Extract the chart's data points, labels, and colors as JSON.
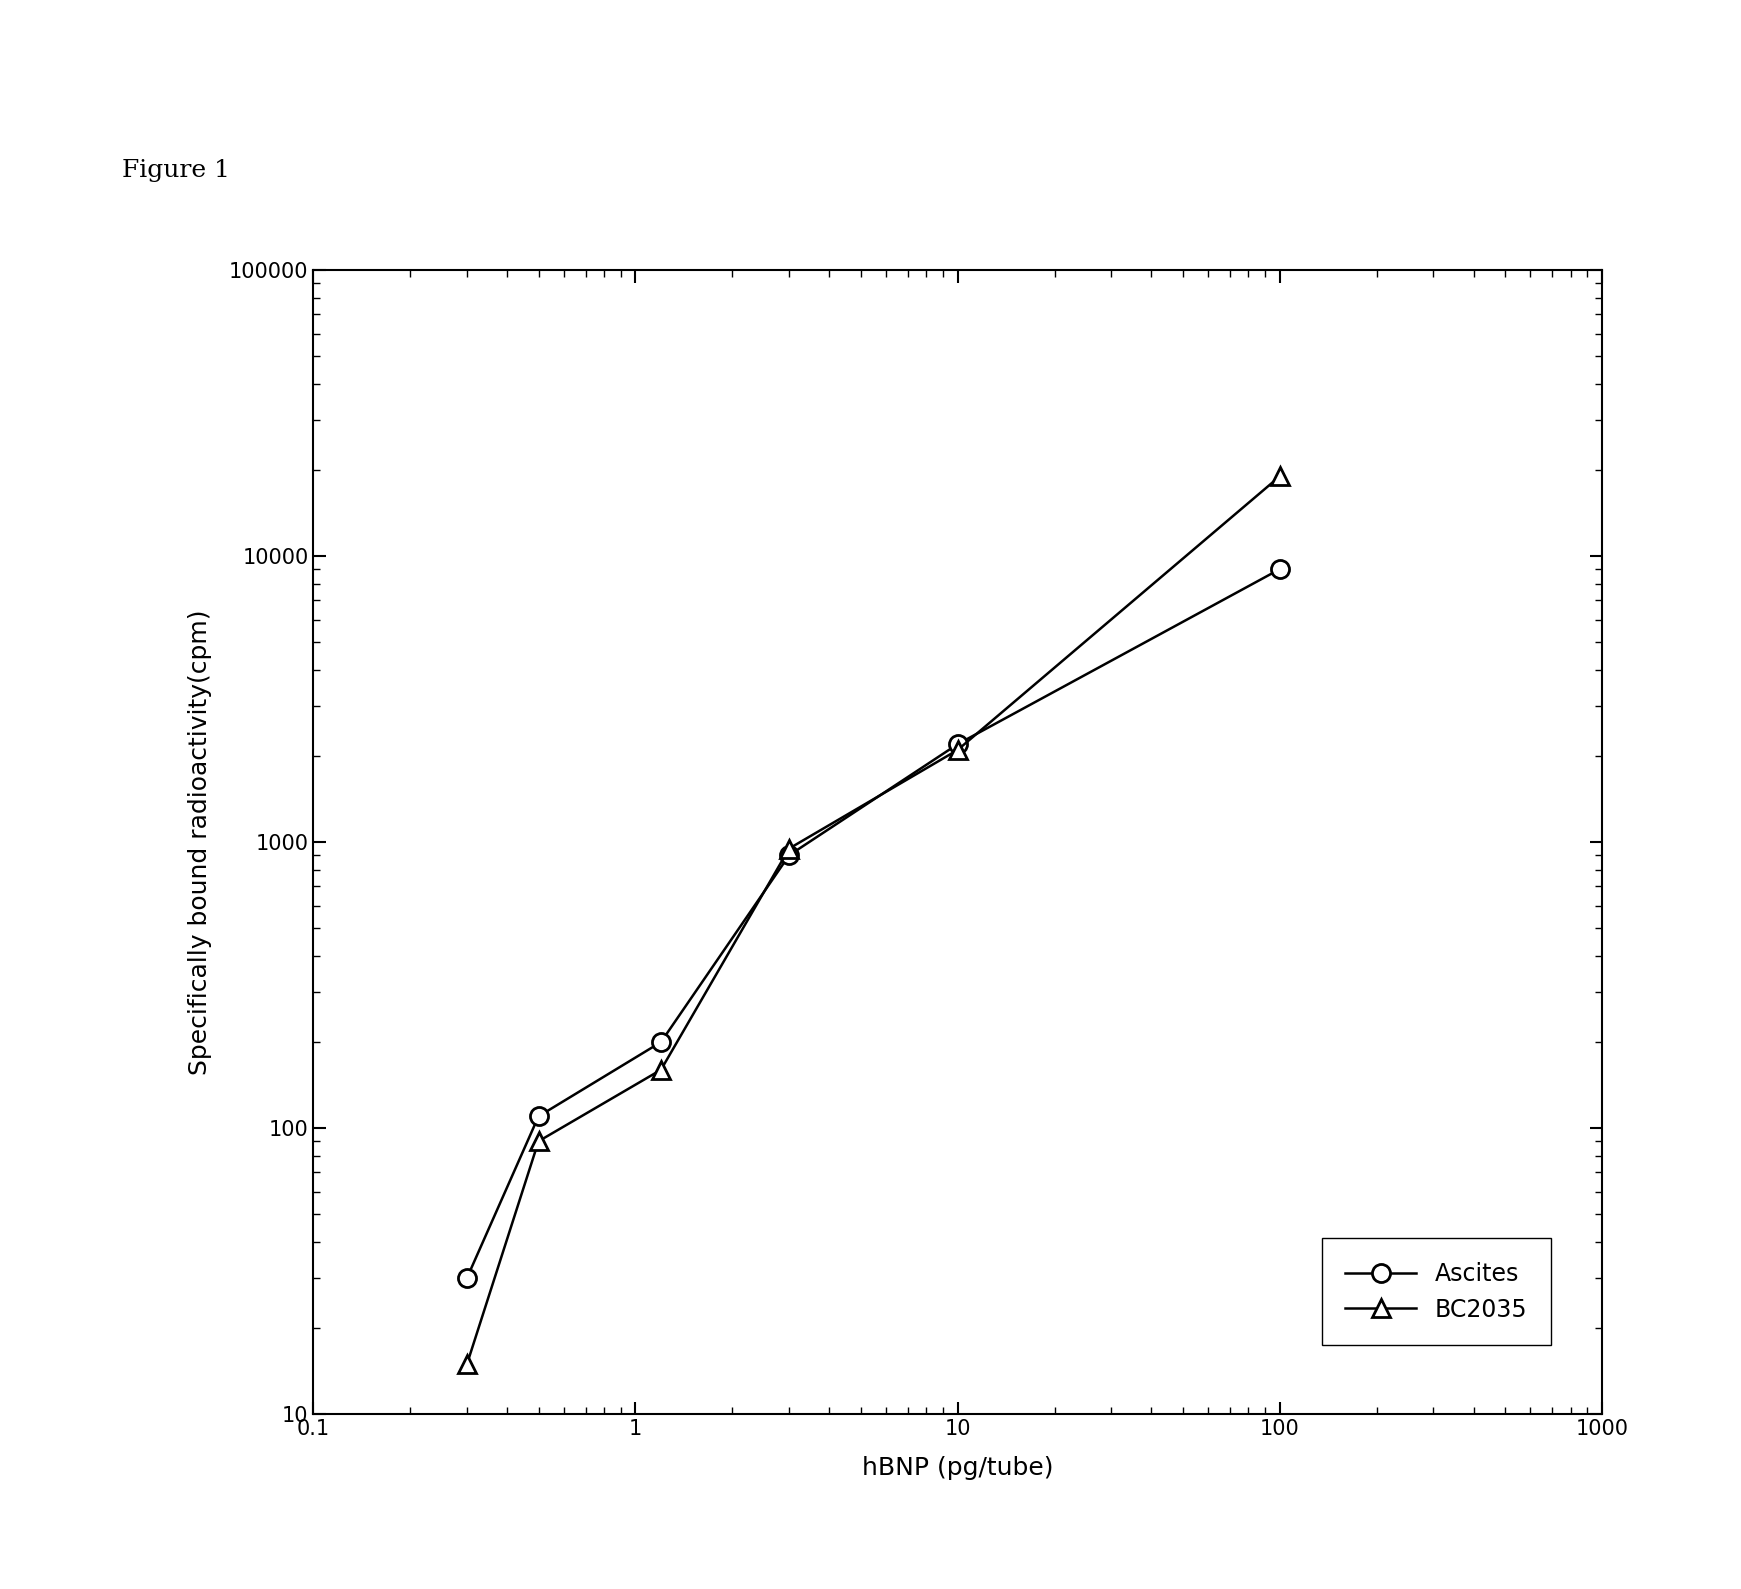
{
  "xlabel": "hBNP (pg/tube)",
  "ylabel": "Specifically bound radioactivity(cpm)",
  "xlim": [
    0.1,
    1000
  ],
  "ylim": [
    10,
    100000
  ],
  "ascites_x": [
    0.3,
    0.5,
    1.2,
    3.0,
    10,
    100
  ],
  "ascites_y": [
    30,
    110,
    200,
    900,
    2200,
    9000
  ],
  "bc2035_x": [
    0.3,
    0.5,
    1.2,
    3.0,
    10,
    100
  ],
  "bc2035_y": [
    15,
    90,
    160,
    950,
    2100,
    19000
  ],
  "ascites_color": "#000000",
  "bc2035_color": "#000000",
  "background_color": "#ffffff",
  "figure_title": "Figure 1",
  "legend_labels": [
    "Ascites",
    "BC2035"
  ],
  "title_fontsize": 18,
  "axis_label_fontsize": 18,
  "tick_fontsize": 15,
  "legend_fontsize": 17
}
